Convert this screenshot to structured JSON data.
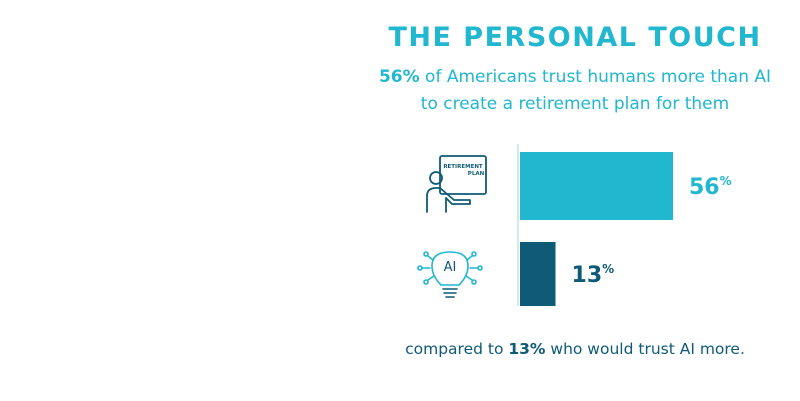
{
  "header": {
    "title": "THE PERSONAL TOUCH",
    "subtitle_bold": "56%",
    "subtitle_rest": " of Americans trust humans more than AI to create a retirement plan for them"
  },
  "icons": {
    "human": {
      "name": "person-presenting-retirement-plan-icon",
      "board_text_1": "RETIREMENT",
      "board_text_2": "PLAN"
    },
    "ai": {
      "name": "ai-lightbulb-icon",
      "text": "AI"
    }
  },
  "footer": {
    "prefix": "compared to ",
    "bold": "13%",
    "suffix": " who would trust AI more."
  },
  "colors": {
    "accent": "#20b7cf",
    "dark": "#0f5a76",
    "text_dark": "#0f5a76"
  },
  "chart_data": {
    "type": "bar",
    "orientation": "horizontal",
    "categories": [
      "Humans",
      "AI"
    ],
    "values": [
      56,
      13
    ],
    "value_labels": [
      "56",
      "13"
    ],
    "unit_suffix": "%",
    "bar_colors": [
      "#20b7cf",
      "#0f5a76"
    ],
    "label_colors": [
      "#20b7cf",
      "#0f5a76"
    ],
    "title": "THE PERSONAL TOUCH",
    "xlabel": "",
    "ylabel": "",
    "xlim": [
      0,
      100
    ],
    "grid": false,
    "legend": "none"
  }
}
